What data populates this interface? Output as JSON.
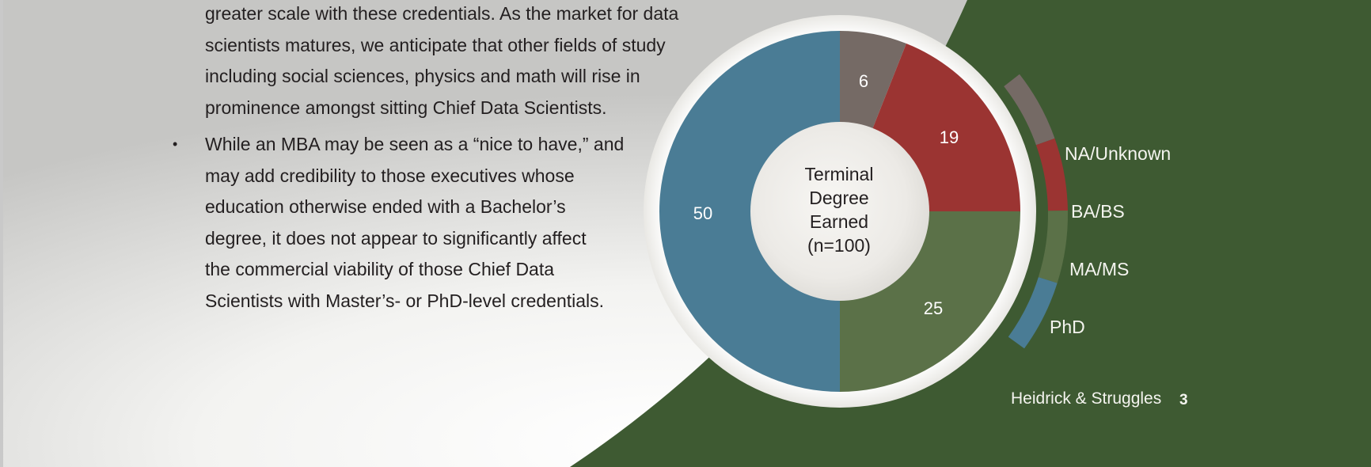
{
  "body_text": {
    "paragraph1_lines": [
      "greater scale with these credentials.  As the market for data",
      "scientists matures, we anticipate that other fields of study",
      "including social sciences, physics and math will rise in",
      "prominence amongst sitting Chief Data Scientists."
    ],
    "bullet_symbol": "•",
    "paragraph2_lines": [
      "While an MBA may be seen as a “nice to have,” and",
      "may add credibility to those executives whose",
      "education otherwise ended with a Bachelor’s",
      "degree, it does not appear to significantly affect",
      "the commercial viability of those Chief Data",
      "Scientists with Master’s- or PhD-level credentials."
    ]
  },
  "footer": {
    "brand": "Heidrick & Struggles",
    "page_number": "3"
  },
  "chart_data": {
    "type": "pie",
    "center_label_lines": [
      "Terminal",
      "Degree",
      "Earned",
      "(n=100)"
    ],
    "slices": [
      {
        "name": "NA/Unknown",
        "value": 6,
        "color": "#756a65"
      },
      {
        "name": "BA/BS",
        "value": 19,
        "color": "#9b3432"
      },
      {
        "name": "MA/MS",
        "value": 25,
        "color": "#5b7148"
      },
      {
        "name": "PhD",
        "value": 50,
        "color": "#4a7c95"
      }
    ],
    "legend_position": "right"
  },
  "colors": {
    "background_green": "#3e5a32",
    "text": "#231f20",
    "light_text": "#f4f4ef"
  }
}
